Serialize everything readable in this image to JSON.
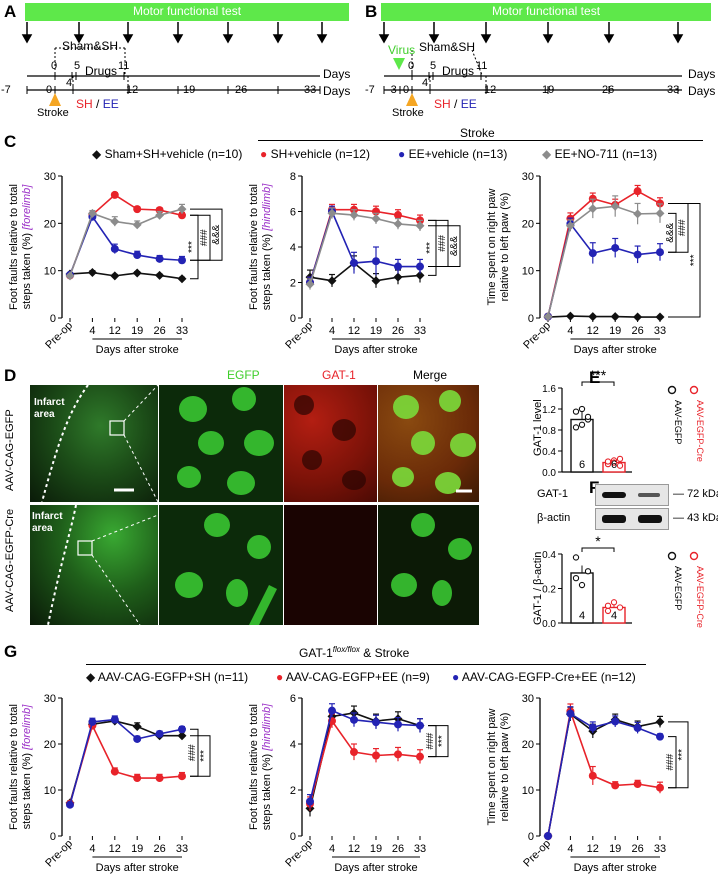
{
  "panels": {
    "A": {
      "letter": "A",
      "banner": "Motor functional test",
      "sham_label": "Sham&SH",
      "drugs_label": "Drugs",
      "upper_ticks": [
        "0",
        "4",
        "5",
        "11"
      ],
      "upper_days": "Days",
      "lower_ticks": [
        "-7",
        "0",
        "4",
        "12",
        "19",
        "26",
        "33"
      ],
      "lower_days": "Days",
      "stroke_label": "Stroke",
      "sh_label": "SH",
      "slash": "/",
      "ee_label": "EE"
    },
    "B": {
      "letter": "B",
      "banner": "Motor functional test",
      "virus_label": "Virus",
      "sham_label": "Sham&SH",
      "drugs_label": "Drugs",
      "upper_ticks": [
        "0",
        "4",
        "5",
        "11"
      ],
      "upper_days": "Days",
      "lower_ticks": [
        "-7",
        "-3",
        "0",
        "4",
        "12",
        "19",
        "26",
        "33"
      ],
      "lower_days": "Days",
      "stroke_label": "Stroke",
      "sh_label": "SH",
      "slash": "/",
      "ee_label": "EE"
    },
    "C": {
      "letter": "C",
      "stroke_header": "Stroke",
      "legend": [
        {
          "name": "Sham+SH+vehicle (n=10)",
          "color": "#111111"
        },
        {
          "name": "SH+vehicle (n=12)",
          "color": "#e8232a"
        },
        {
          "name": "EE+vehicle (n=13)",
          "color": "#2323b4"
        },
        {
          "name": "EE+NO-711 (n=13)",
          "color": "#8c8c8c"
        }
      ]
    },
    "D": {
      "letter": "D",
      "col_egfp": "EGFP",
      "col_gat1": "GAT-1",
      "col_merge": "Merge",
      "row1_label": "AAV-CAG-EGFP",
      "row2_label": "AAV-CAG-EGFP-Cre",
      "infarct_1": "Infarct area",
      "infarct_2": "Infarct area"
    },
    "E": {
      "letter": "E",
      "ylabel": "GAT-1 level",
      "yticks": [
        "0.0",
        "0.4",
        "0.8",
        "1.2",
        "1.6"
      ],
      "values": [
        1.0,
        0.18
      ],
      "n_labels": [
        "6",
        "6"
      ],
      "sig": "***",
      "legend": [
        "AAV-EGFP",
        "AAV-EGFP-Cre"
      ]
    },
    "F": {
      "letter": "F",
      "blot_gat": "GAT-1",
      "blot_actin": "β-actin",
      "kda_72": "72",
      "kda_43": "43",
      "kda_unit1": "kDa",
      "kda_unit2": "kDa",
      "ylabel": "GAT-1 / β-actin",
      "yticks": [
        "0.0",
        "0.2",
        "0.4"
      ],
      "values": [
        0.29,
        0.09
      ],
      "n_labels": [
        "4",
        "4"
      ],
      "sig": "*",
      "legend": [
        "AAV-EGFP",
        "AAV-EGFP-Cre"
      ]
    },
    "G": {
      "letter": "G",
      "header": "GAT-1",
      "header_sup": "flox/flox",
      "header_tail": " & Stroke",
      "legend": [
        {
          "name": "AAV-CAG-EGFP+SH (n=11)",
          "color": "#111111"
        },
        {
          "name": "AAV-CAG-EGFP+EE (n=9)",
          "color": "#e8232a"
        },
        {
          "name": "AAV-CAG-EGFP-Cre+EE (n=12)",
          "color": "#2323b4"
        }
      ]
    }
  },
  "chart_data": [
    {
      "id": "C1",
      "type": "line",
      "ylabel_lines": [
        "Foot faults relative to total",
        "steps taken (%)"
      ],
      "ylabel_tag": "[forelimb]",
      "xlabel": "Days after stroke",
      "categories": [
        "Pre-op",
        "4",
        "12",
        "19",
        "26",
        "33"
      ],
      "ylim": [
        0,
        30
      ],
      "yticks": [
        0,
        10,
        20,
        30
      ],
      "series": [
        {
          "name": "Sham+SH+vehicle",
          "color": "#111111",
          "values": [
            9.3,
            9.6,
            8.9,
            9.5,
            9.0,
            8.3
          ],
          "err": [
            0.3,
            0.4,
            0.3,
            0.3,
            0.3,
            0.3
          ]
        },
        {
          "name": "SH+vehicle",
          "color": "#e8232a",
          "values": [
            9.0,
            21.8,
            26.0,
            23.0,
            22.8,
            21.7
          ],
          "err": [
            0.3,
            0.6,
            0.5,
            0.5,
            0.5,
            0.6
          ]
        },
        {
          "name": "EE+vehicle",
          "color": "#2323b4",
          "values": [
            9.1,
            21.4,
            14.6,
            13.3,
            12.5,
            12.2
          ],
          "err": [
            0.3,
            0.6,
            1.0,
            0.8,
            0.7,
            0.8
          ]
        },
        {
          "name": "EE+NO-711",
          "color": "#8c8c8c",
          "values": [
            8.9,
            22.1,
            20.4,
            19.7,
            21.7,
            23.0
          ],
          "err": [
            0.3,
            0.6,
            1.0,
            0.8,
            0.8,
            1.0
          ]
        }
      ],
      "sig": [
        {
          "text": "***",
          "from": "Sham+SH+vehicle",
          "to": "SH+vehicle"
        },
        {
          "text": "###",
          "from": "SH+vehicle",
          "to": "EE+vehicle"
        },
        {
          "text": "&&&",
          "from": "EE+vehicle",
          "to": "EE+NO-711"
        }
      ]
    },
    {
      "id": "C2",
      "type": "line",
      "ylabel_lines": [
        "Foot faults relative to total",
        "steps taken (%)"
      ],
      "ylabel_tag": "[hindlimb]",
      "xlabel": "Days after stroke",
      "categories": [
        "Pre-op",
        "4",
        "12",
        "19",
        "26",
        "33"
      ],
      "ylim": [
        0,
        8
      ],
      "yticks": [
        0,
        2,
        4,
        6,
        8
      ],
      "series": [
        {
          "name": "Sham+SH+vehicle",
          "color": "#111111",
          "values": [
            2.3,
            2.1,
            3.1,
            2.1,
            2.3,
            2.4
          ],
          "err": [
            0.4,
            0.35,
            0.4,
            0.4,
            0.4,
            0.4
          ]
        },
        {
          "name": "SH+vehicle",
          "color": "#e8232a",
          "values": [
            2.0,
            6.1,
            6.1,
            6.0,
            5.8,
            5.5
          ],
          "err": [
            0.3,
            0.3,
            0.3,
            0.3,
            0.3,
            0.3
          ]
        },
        {
          "name": "EE+vehicle",
          "color": "#2323b4",
          "values": [
            2.0,
            6.0,
            3.1,
            3.2,
            2.9,
            2.9
          ],
          "err": [
            0.3,
            0.3,
            0.6,
            0.8,
            0.4,
            0.4
          ]
        },
        {
          "name": "EE+NO-711",
          "color": "#8c8c8c",
          "values": [
            1.9,
            5.9,
            5.8,
            5.6,
            5.3,
            5.2
          ],
          "err": [
            0.3,
            0.3,
            0.3,
            0.3,
            0.3,
            0.3
          ]
        }
      ],
      "sig": [
        {
          "text": "***",
          "from": "Sham+SH+vehicle",
          "to": "SH+vehicle"
        },
        {
          "text": "###",
          "from": "SH+vehicle",
          "to": "EE+vehicle"
        },
        {
          "text": "&&&",
          "from": "EE+vehicle",
          "to": "EE+NO-711"
        }
      ]
    },
    {
      "id": "C3",
      "type": "line",
      "ylabel_lines": [
        "Time spent on right paw",
        "relative to left paw (%)"
      ],
      "ylabel_tag": "",
      "xlabel": "Days after stroke",
      "categories": [
        "Pre-op",
        "4",
        "12",
        "19",
        "26",
        "33"
      ],
      "ylim": [
        0,
        30
      ],
      "yticks": [
        0,
        10,
        20,
        30
      ],
      "series": [
        {
          "name": "Sham+SH+vehicle",
          "color": "#111111",
          "values": [
            0.2,
            0.4,
            0.3,
            0.3,
            0.2,
            0.2
          ],
          "err": [
            0.1,
            0.1,
            0.1,
            0.1,
            0.1,
            0.1
          ]
        },
        {
          "name": "SH+vehicle",
          "color": "#e8232a",
          "values": [
            0.3,
            21.0,
            25.2,
            23.9,
            26.8,
            24.2
          ],
          "err": [
            0.2,
            1.2,
            1.2,
            1.2,
            1.2,
            1.2
          ]
        },
        {
          "name": "EE+vehicle",
          "color": "#2323b4",
          "values": [
            0.3,
            19.9,
            13.7,
            14.8,
            13.4,
            13.9
          ],
          "err": [
            0.2,
            1.2,
            2.2,
            2.0,
            1.8,
            1.8
          ]
        },
        {
          "name": "EE+NO-711",
          "color": "#8c8c8c",
          "values": [
            0.3,
            19.5,
            23.1,
            23.6,
            22.0,
            22.1
          ],
          "err": [
            0.2,
            1.2,
            2.0,
            2.2,
            2.2,
            2.0
          ]
        }
      ],
      "sig": [
        {
          "text": "&&&",
          "from": "EE+vehicle",
          "to": "EE+NO-711"
        },
        {
          "text": "###",
          "from": "SH+vehicle",
          "to": "EE+vehicle"
        },
        {
          "text": "***",
          "from": "Sham+SH+vehicle",
          "to": "SH+vehicle"
        }
      ]
    },
    {
      "id": "G1",
      "type": "line",
      "ylabel_lines": [
        "Foot faults relative to total",
        "steps taken (%)"
      ],
      "ylabel_tag": "[forelimb]",
      "xlabel": "Days after stroke",
      "categories": [
        "Pre-op",
        "4",
        "12",
        "19",
        "26",
        "33"
      ],
      "ylim": [
        0,
        30
      ],
      "yticks": [
        0,
        10,
        20,
        30
      ],
      "series": [
        {
          "name": "AAV-CAG-EGFP+SH",
          "color": "#111111",
          "values": [
            7.2,
            24.3,
            25.0,
            23.8,
            21.8,
            21.8
          ],
          "err": [
            0.4,
            0.8,
            0.8,
            0.8,
            0.8,
            0.8
          ]
        },
        {
          "name": "AAV-CAG-EGFP+EE",
          "color": "#e8232a",
          "values": [
            7.0,
            24.0,
            14.0,
            12.6,
            12.6,
            13.0
          ],
          "err": [
            0.4,
            0.8,
            0.8,
            0.8,
            0.8,
            0.8
          ]
        },
        {
          "name": "AAV-CAG-EGFP-Cre+EE",
          "color": "#2323b4",
          "values": [
            6.8,
            24.8,
            25.3,
            21.1,
            22.2,
            23.2
          ],
          "err": [
            0.4,
            0.8,
            0.8,
            0.6,
            0.6,
            0.6
          ]
        }
      ],
      "sig": [
        {
          "text": "###",
          "from": "AAV-CAG-EGFP+EE",
          "to": "AAV-CAG-EGFP-Cre+EE"
        },
        {
          "text": "***",
          "from": "AAV-CAG-EGFP+EE",
          "to": "AAV-CAG-EGFP+SH"
        }
      ]
    },
    {
      "id": "G2",
      "type": "line",
      "ylabel_lines": [
        "Foot faults relative to total",
        "steps taken (%)"
      ],
      "ylabel_tag": "[hindlimb]",
      "xlabel": "Days after stroke",
      "categories": [
        "Pre-op",
        "4",
        "12",
        "19",
        "26",
        "33"
      ],
      "ylim": [
        0,
        6
      ],
      "yticks": [
        0,
        2,
        4,
        6
      ],
      "series": [
        {
          "name": "AAV-CAG-EGFP+SH",
          "color": "#111111",
          "values": [
            1.2,
            5.2,
            5.35,
            5.0,
            5.1,
            4.8
          ],
          "err": [
            0.35,
            0.25,
            0.3,
            0.3,
            0.3,
            0.3
          ]
        },
        {
          "name": "AAV-CAG-EGFP+EE",
          "color": "#e8232a",
          "values": [
            1.4,
            5.0,
            3.65,
            3.5,
            3.55,
            3.45
          ],
          "err": [
            0.3,
            0.3,
            0.35,
            0.3,
            0.3,
            0.3
          ]
        },
        {
          "name": "AAV-CAG-EGFP-Cre+EE",
          "color": "#2323b4",
          "values": [
            1.5,
            5.45,
            5.05,
            4.95,
            4.85,
            4.8
          ],
          "err": [
            0.3,
            0.3,
            0.3,
            0.3,
            0.3,
            0.3
          ]
        }
      ],
      "sig": [
        {
          "text": "###",
          "from": "AAV-CAG-EGFP+EE",
          "to": "AAV-CAG-EGFP-Cre+EE"
        },
        {
          "text": "***",
          "from": "AAV-CAG-EGFP+EE",
          "to": "AAV-CAG-EGFP+SH"
        }
      ]
    },
    {
      "id": "G3",
      "type": "line",
      "ylabel_lines": [
        "Time spent on right paw",
        "relative to left paw (%)"
      ],
      "ylabel_tag": "",
      "xlabel": "Days after stroke",
      "categories": [
        "Pre-op",
        "4",
        "12",
        "19",
        "26",
        "33"
      ],
      "ylim": [
        0,
        30
      ],
      "yticks": [
        0,
        10,
        20,
        30
      ],
      "series": [
        {
          "name": "AAV-CAG-EGFP+SH",
          "color": "#111111",
          "values": [
            0.0,
            26.5,
            22.8,
            25.3,
            23.8,
            24.8
          ],
          "err": [
            0.1,
            1.5,
            1.5,
            1.2,
            1.2,
            1.2
          ]
        },
        {
          "name": "AAV-CAG-EGFP+EE",
          "color": "#e8232a",
          "values": [
            0.0,
            27.1,
            13.1,
            11.0,
            11.3,
            10.5
          ],
          "err": [
            0.1,
            1.6,
            2.0,
            0.8,
            0.8,
            1.2
          ]
        },
        {
          "name": "AAV-CAG-EGFP-Cre+EE",
          "color": "#2323b4",
          "values": [
            0.0,
            26.6,
            23.6,
            24.9,
            23.5,
            21.6
          ],
          "err": [
            0.1,
            1.5,
            1.2,
            1.2,
            1.2,
            0.6
          ]
        }
      ],
      "sig": [
        {
          "text": "###",
          "from": "AAV-CAG-EGFP+EE",
          "to": "AAV-CAG-EGFP-Cre+EE"
        },
        {
          "text": "***",
          "from": "AAV-CAG-EGFP+EE",
          "to": "AAV-CAG-EGFP+SH"
        }
      ]
    }
  ]
}
